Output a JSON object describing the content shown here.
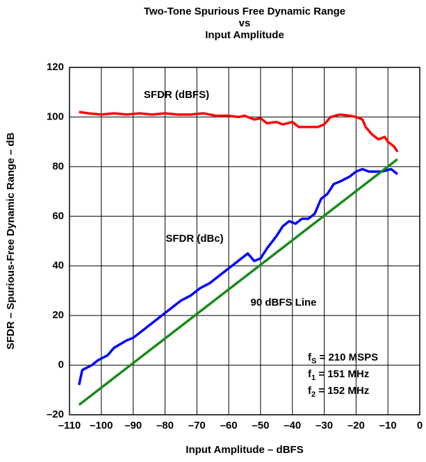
{
  "chart_data": {
    "type": "line",
    "title": [
      "Two-Tone Spurious Free Dynamic Range",
      "vs",
      "Input Amplitude"
    ],
    "xlabel": "Input Amplitude – dBFS",
    "ylabel": "SFDR – Spurious-Free Dynamic Range – dB",
    "xlim": [
      -110,
      0
    ],
    "ylim": [
      -20,
      120
    ],
    "xticks": [
      {
        "value": -110,
        "label": "–110"
      },
      {
        "value": -100,
        "label": "–100"
      },
      {
        "value": -90,
        "label": "–90"
      },
      {
        "value": -80,
        "label": "–80"
      },
      {
        "value": -70,
        "label": "–70"
      },
      {
        "value": -60,
        "label": "–60"
      },
      {
        "value": -50,
        "label": "–50"
      },
      {
        "value": -40,
        "label": "–40"
      },
      {
        "value": -30,
        "label": "–30"
      },
      {
        "value": -20,
        "label": "–20"
      },
      {
        "value": -10,
        "label": "–10"
      },
      0
    ],
    "yticks": [
      {
        "value": -20,
        "label": "–20"
      },
      0,
      20,
      40,
      60,
      80,
      100,
      120
    ],
    "grid": true,
    "series": [
      {
        "name": "SFDR (dBFS)",
        "color": "#ff0000",
        "x": [
          -107,
          -104,
          -100,
          -96,
          -92,
          -88,
          -84,
          -80,
          -76,
          -72,
          -68,
          -64,
          -60,
          -57,
          -55,
          -52,
          -50,
          -48,
          -45,
          -43,
          -40,
          -38,
          -35,
          -32,
          -30,
          -28,
          -25,
          -22,
          -20,
          -18,
          -17,
          -15,
          -13,
          -11,
          -10,
          -8,
          -7
        ],
        "values": [
          102,
          101.5,
          101,
          101.5,
          101,
          101.5,
          101,
          101.5,
          101,
          101,
          101.5,
          100.5,
          100.5,
          100,
          100.5,
          99,
          99.5,
          97.5,
          98,
          97,
          98,
          96,
          96,
          96,
          97,
          100,
          101,
          100.5,
          100,
          99,
          96,
          93,
          91,
          92,
          90,
          88,
          86
        ]
      },
      {
        "name": "SFDR (dBc)",
        "color": "#0000ff",
        "x": [
          -107,
          -106,
          -103,
          -101,
          -98,
          -96,
          -92,
          -90,
          -87,
          -84,
          -81,
          -78,
          -75,
          -72,
          -69,
          -66,
          -63,
          -60,
          -58,
          -55,
          -54,
          -52,
          -50,
          -48,
          -45,
          -43,
          -41,
          -39,
          -37,
          -35,
          -33,
          -31,
          -29,
          -27,
          -25,
          -22,
          -20,
          -18,
          -16,
          -12,
          -9,
          -7
        ],
        "values": [
          -8,
          -2,
          0,
          2,
          4,
          7,
          10,
          11,
          14,
          17,
          20,
          23,
          26,
          28,
          31,
          33,
          36,
          39,
          41,
          44,
          45,
          42,
          43,
          47,
          52,
          56,
          58,
          57,
          59,
          59,
          61,
          67,
          69,
          73,
          74,
          76,
          78,
          79,
          78,
          78,
          79,
          77
        ]
      },
      {
        "name": "90 dBFS Line",
        "color": "#1a8a1a",
        "x": [
          -107,
          -7
        ],
        "values": [
          -16,
          83
        ]
      }
    ],
    "annotations": [
      {
        "text": "f",
        "sub": "S",
        "rest": " = 210 MSPS"
      },
      {
        "text": "f",
        "sub": "1",
        "rest": " = 151 MHz"
      },
      {
        "text": "f",
        "sub": "2",
        "rest": " = 152 MHz"
      }
    ]
  }
}
